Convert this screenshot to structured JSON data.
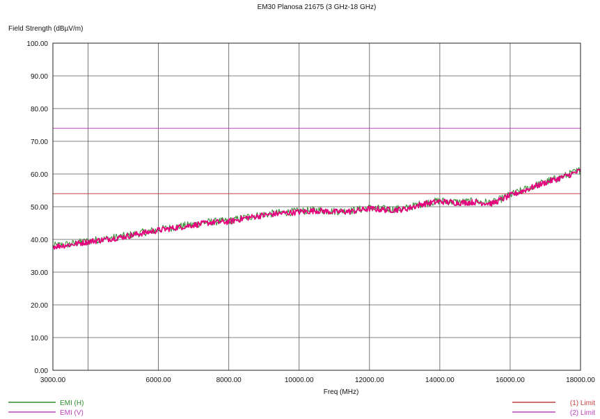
{
  "chart_data": {
    "type": "line",
    "title": "EM30 Planosa 21675 (3 GHz-18 GHz)",
    "xlabel": "Freq (MHz)",
    "ylabel": "Field Strength  (dBµV/m)",
    "xlim": [
      3000,
      18000
    ],
    "ylim": [
      0,
      100
    ],
    "x_ticks": [
      "3000.00",
      "6000.00",
      "8000.00",
      "10000.00",
      "12000.00",
      "14000.00",
      "16000.00",
      "18000.00"
    ],
    "y_ticks": [
      "0.00",
      "10.00",
      "20.00",
      "30.00",
      "40.00",
      "50.00",
      "60.00",
      "70.00",
      "80.00",
      "90.00",
      "100.00"
    ],
    "grid": true,
    "series": [
      {
        "name": "EMI (H)",
        "color": "#2e8b2e",
        "x": [
          3000,
          3500,
          4000,
          4500,
          5000,
          5500,
          6000,
          6500,
          7000,
          7500,
          8000,
          8500,
          9000,
          9500,
          10000,
          10500,
          11000,
          11500,
          12000,
          12500,
          13000,
          13500,
          14000,
          14500,
          15000,
          15500,
          16000,
          16500,
          17000,
          17500,
          18000
        ],
        "y": [
          38,
          38.6,
          39.5,
          40.2,
          41,
          42,
          43,
          43.8,
          44.6,
          45.4,
          45.6,
          46.8,
          47.6,
          48.2,
          48.6,
          49,
          48.6,
          48.8,
          49.6,
          49.2,
          49.4,
          51,
          51.8,
          51.4,
          51.6,
          51.2,
          53.6,
          55.6,
          57.6,
          59.2,
          61.2
        ]
      },
      {
        "name": "EMI (V)",
        "color": "#e6007e",
        "x": [
          3000,
          3500,
          4000,
          4500,
          5000,
          5500,
          6000,
          6500,
          7000,
          7500,
          8000,
          8500,
          9000,
          9500,
          10000,
          10500,
          11000,
          11500,
          12000,
          12500,
          13000,
          13500,
          14000,
          14500,
          15000,
          15500,
          16000,
          16500,
          17000,
          17500,
          18000
        ],
        "y": [
          37.8,
          38.4,
          39.3,
          40,
          40.8,
          41.8,
          42.8,
          43.6,
          44.4,
          45.2,
          45.4,
          46.6,
          47.4,
          48,
          48.4,
          48.8,
          48.4,
          48.6,
          49.4,
          49,
          49.2,
          50.8,
          51.6,
          51.2,
          51.4,
          51,
          53.4,
          55.4,
          57.4,
          59,
          61
        ]
      }
    ],
    "limits": [
      {
        "name": "(1) Limit",
        "value": 54,
        "color": "#c04040"
      },
      {
        "name": "(2) Limit",
        "value": 74,
        "color": "#c040c0"
      }
    ],
    "legend": {
      "left": [
        "EMI (H)",
        "EMI (V)"
      ],
      "right": [
        "(1) Limit",
        "(2) Limit"
      ]
    }
  }
}
